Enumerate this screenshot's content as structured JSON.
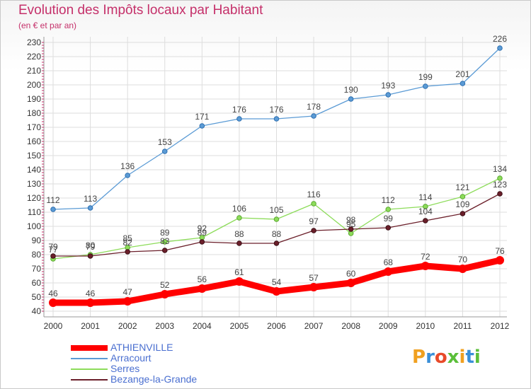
{
  "header": {
    "title": "Evolution des Impôts locaux par Habitant",
    "subtitle": "(en € et par an)"
  },
  "logo": {
    "text": "Proxiti"
  },
  "chart_data": {
    "type": "line",
    "title": "Evolution des Impôts locaux par Habitant",
    "subtitle": "(en € et par an)",
    "xlabel": "",
    "ylabel": "",
    "x": [
      "2000",
      "2001",
      "2002",
      "2003",
      "2004",
      "2005",
      "2006",
      "2007",
      "2008",
      "2009",
      "2010",
      "2011",
      "2012"
    ],
    "ylim": [
      40,
      230
    ],
    "yticks": [
      40,
      50,
      60,
      70,
      80,
      90,
      100,
      110,
      120,
      130,
      140,
      150,
      160,
      170,
      180,
      190,
      200,
      210,
      220,
      230
    ],
    "grid": true,
    "legend_position": "bottom-left",
    "series": [
      {
        "name": "ATHIENVILLE",
        "color": "#ff0000",
        "values": [
          46,
          46,
          47,
          52,
          56,
          61,
          54,
          57,
          60,
          68,
          72,
          70,
          76
        ]
      },
      {
        "name": "Arracourt",
        "color": "#5b9bd5",
        "values": [
          112,
          113,
          136,
          153,
          171,
          176,
          176,
          178,
          190,
          193,
          199,
          201,
          226
        ]
      },
      {
        "name": "Serres",
        "color": "#8ddc5a",
        "values": [
          77,
          80,
          85,
          89,
          92,
          106,
          105,
          116,
          95,
          112,
          114,
          121,
          134
        ]
      },
      {
        "name": "Bezange-la-Grande",
        "color": "#6b1f2a",
        "values": [
          79,
          79,
          82,
          83,
          89,
          88,
          88,
          97,
          98,
          99,
          104,
          109,
          123
        ]
      }
    ]
  }
}
